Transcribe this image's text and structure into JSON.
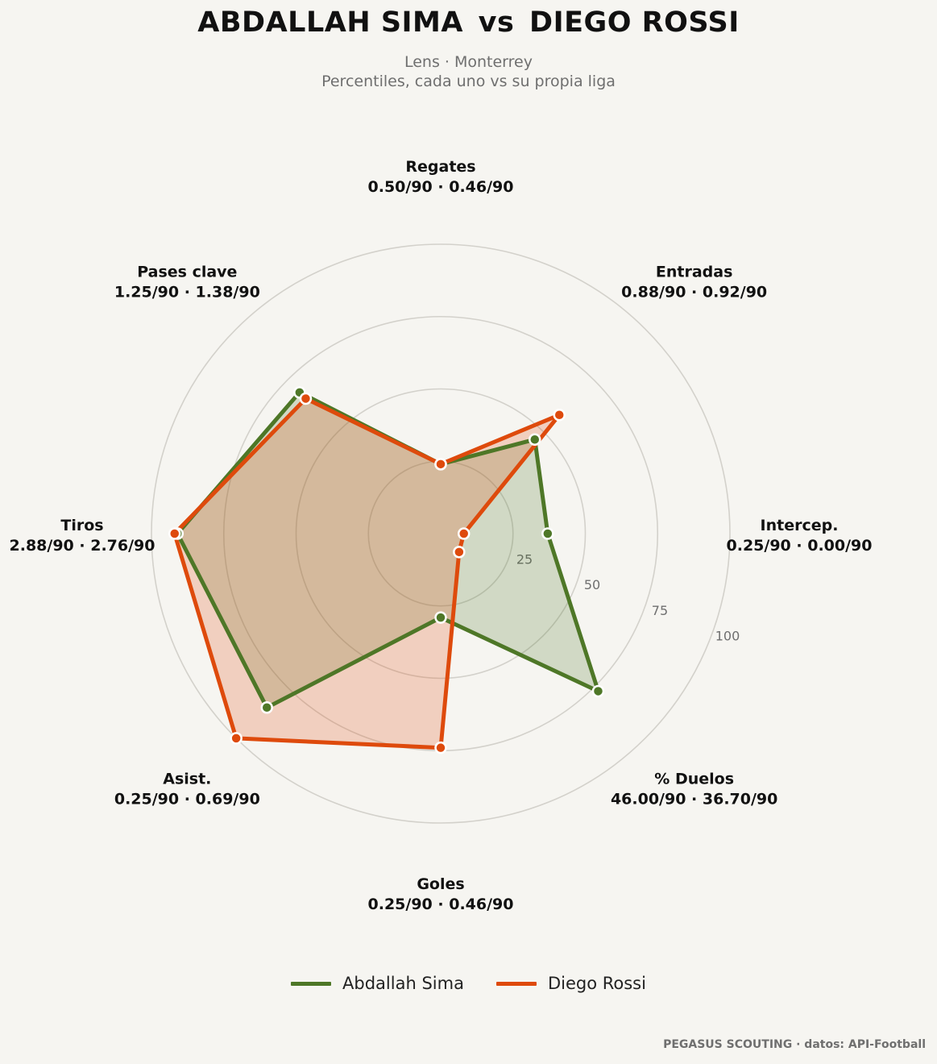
{
  "header": {
    "player_a": "ABDALLAH SIMA",
    "vs": "vs",
    "player_b": "DIEGO ROSSI",
    "teams": "Lens · Monterrey",
    "description": "Percentiles, cada uno vs su propia liga"
  },
  "footer": {
    "credit": "PEGASUS SCOUTING · datos: API-Football"
  },
  "chart_data": {
    "type": "radar",
    "categories": [
      "Regates",
      "Entradas",
      "Intercep.",
      "% Duelos",
      "Goles",
      "Asist.",
      "Tiros",
      "Pases clave"
    ],
    "category_values": [
      "0.50/90 · 0.46/90",
      "0.88/90 · 0.92/90",
      "0.25/90 · 0.00/90",
      "46.00/90 · 36.70/90",
      "0.25/90 · 0.46/90",
      "0.25/90 · 0.69/90",
      "2.88/90 · 2.76/90",
      "1.25/90 · 1.38/90"
    ],
    "rlim": [
      0,
      100
    ],
    "rticks": [
      "25",
      "50",
      "75",
      "100"
    ],
    "series": [
      {
        "name": "Abdallah Sima",
        "color": "#4e7727",
        "values": [
          24,
          46,
          37,
          77,
          29,
          85,
          91,
          69
        ]
      },
      {
        "name": "Diego Rossi",
        "color": "#de4a0c",
        "values": [
          24,
          58,
          8,
          9,
          74,
          100,
          92,
          66
        ]
      }
    ],
    "grid": true,
    "legend_position": "bottom"
  }
}
